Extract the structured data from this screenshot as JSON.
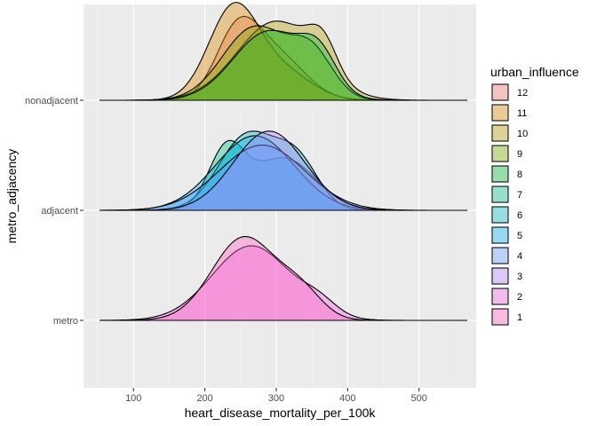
{
  "chart_data": {
    "type": "ridgeline-density",
    "xlabel": "heart_disease_mortality_per_100k",
    "ylabel": "metro_adjacency",
    "xlim": [
      30,
      580
    ],
    "x_ticks": [
      100,
      200,
      300,
      400,
      500
    ],
    "categories": [
      "metro",
      "adjacent",
      "nonadjacent"
    ],
    "legend": {
      "title": "urban_influence",
      "position": "right",
      "entries": [
        "12",
        "11",
        "10",
        "9",
        "8",
        "7",
        "6",
        "5",
        "4",
        "3",
        "2",
        "1"
      ]
    },
    "colors": {
      "1": "#ff61c3",
      "2": "#f564e3",
      "3": "#b983ff",
      "4": "#619cff",
      "5": "#00b4ef",
      "6": "#00bfc4",
      "7": "#00c08b",
      "8": "#00ba38",
      "9": "#7cae00",
      "10": "#b79f00",
      "11": "#de8c00",
      "12": "#f8766d"
    },
    "grid": true,
    "density_range": [
      53,
      567
    ],
    "series": [
      {
        "name": "1",
        "category": "metro",
        "peaks": [
          [
            255,
            1.0,
            45
          ],
          [
            335,
            0.3,
            30
          ]
        ],
        "scale": 0.9
      },
      {
        "name": "2",
        "category": "metro",
        "peaks": [
          [
            265,
            0.9,
            55
          ],
          [
            360,
            0.15,
            25
          ]
        ],
        "scale": 0.8
      },
      {
        "name": "3",
        "category": "adjacent",
        "peaks": [
          [
            290,
            1.0,
            50
          ]
        ],
        "scale": 0.85
      },
      {
        "name": "4",
        "category": "adjacent",
        "peaks": [
          [
            280,
            0.9,
            60
          ]
        ],
        "scale": 0.7
      },
      {
        "name": "5",
        "category": "adjacent",
        "peaks": [
          [
            270,
            1.0,
            55
          ]
        ],
        "scale": 0.8
      },
      {
        "name": "6",
        "category": "adjacent",
        "peaks": [
          [
            260,
            1.0,
            40
          ],
          [
            330,
            0.6,
            30
          ]
        ],
        "scale": 0.85
      },
      {
        "name": "7",
        "category": "adjacent",
        "peaks": [
          [
            230,
            1.0,
            25
          ],
          [
            310,
            0.9,
            45
          ]
        ],
        "scale": 0.75
      },
      {
        "name": "8",
        "category": "nonadjacent",
        "peaks": [
          [
            290,
            1.0,
            50
          ],
          [
            360,
            0.5,
            25
          ]
        ],
        "scale": 0.75
      },
      {
        "name": "9",
        "category": "nonadjacent",
        "peaks": [
          [
            270,
            1.0,
            45
          ],
          [
            350,
            0.6,
            30
          ]
        ],
        "scale": 0.8
      },
      {
        "name": "10",
        "category": "nonadjacent",
        "peaks": [
          [
            300,
            1.0,
            55
          ],
          [
            365,
            0.4,
            20
          ]
        ],
        "scale": 0.85
      },
      {
        "name": "11",
        "category": "nonadjacent",
        "peaks": [
          [
            240,
            1.0,
            35
          ],
          [
            310,
            0.3,
            40
          ]
        ],
        "scale": 1.05
      },
      {
        "name": "12",
        "category": "nonadjacent",
        "peaks": [
          [
            245,
            1.0,
            30
          ],
          [
            300,
            0.7,
            40
          ]
        ],
        "scale": 0.9
      }
    ]
  }
}
